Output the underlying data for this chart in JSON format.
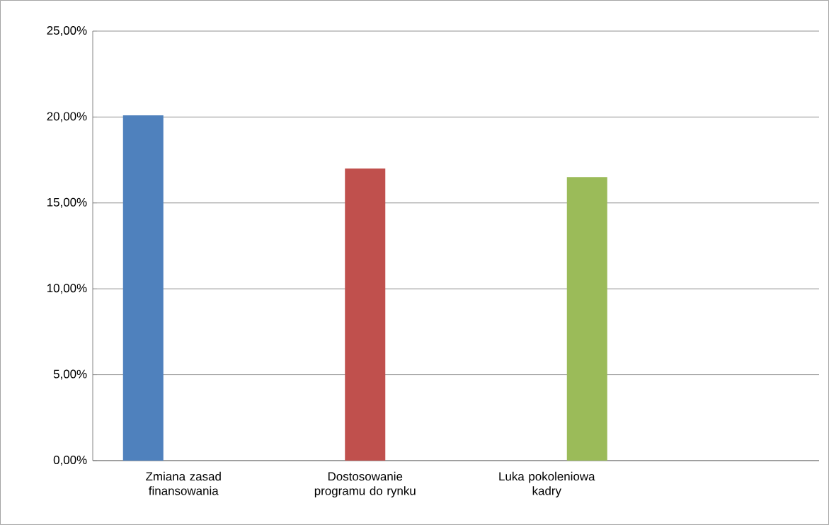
{
  "chart_data": {
    "type": "bar",
    "categories": [
      "Zmiana zasad finansowania",
      "Dostosowanie programu do rynku",
      "Luka pokoleniowa kadry",
      null
    ],
    "series": [
      {
        "color": "#4f81bd",
        "values": [
          20.1,
          null,
          null,
          null
        ]
      },
      {
        "color": "#c0504d",
        "values": [
          null,
          17.0,
          null,
          null
        ]
      },
      {
        "color": "#9bbb59",
        "values": [
          null,
          null,
          16.5,
          null
        ]
      }
    ],
    "ylim": [
      0,
      25
    ],
    "yticks": [
      {
        "value": 0,
        "label": "0,00%"
      },
      {
        "value": 5,
        "label": "5,00%"
      },
      {
        "value": 10,
        "label": "10,00%"
      },
      {
        "value": 15,
        "label": "15,00%"
      },
      {
        "value": 20,
        "label": "20,00%"
      },
      {
        "value": 25,
        "label": "25,00%"
      }
    ],
    "grid": "y"
  }
}
